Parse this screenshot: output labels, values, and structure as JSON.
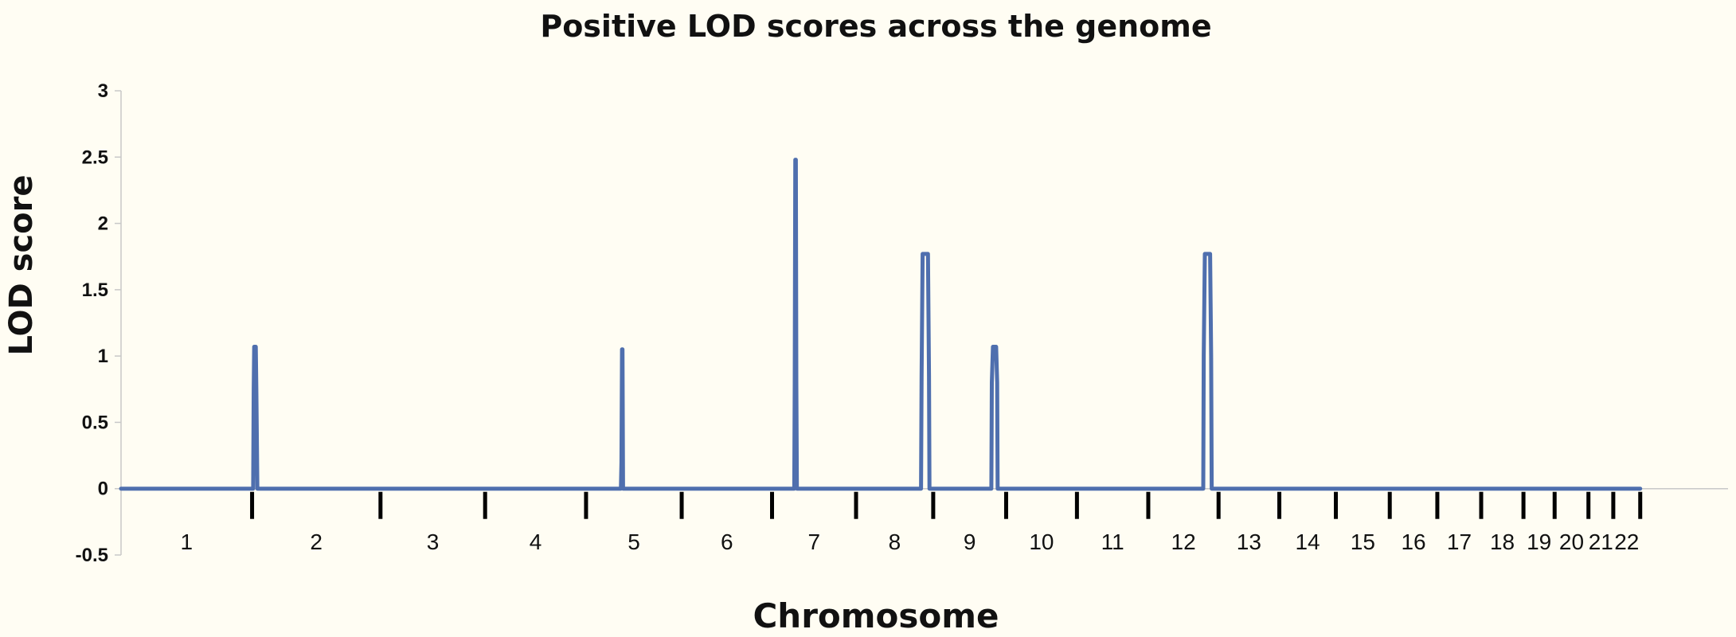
{
  "chart_data": {
    "type": "line",
    "title": "Positive LOD scores across the genome",
    "xlabel": "Chromosome",
    "ylabel": "LOD score",
    "ylim": [
      -0.5,
      3
    ],
    "yticks": [
      {
        "value": 3,
        "label": "3"
      },
      {
        "value": 2.5,
        "label": "2.5"
      },
      {
        "value": 2,
        "label": "2"
      },
      {
        "value": 1.5,
        "label": "1.5"
      },
      {
        "value": 1,
        "label": "1"
      },
      {
        "value": 0.5,
        "label": "0.5"
      },
      {
        "value": 0,
        "label": "0"
      },
      {
        "value": -0.5,
        "label": "-0.5"
      }
    ],
    "xlim": [
      0,
      2898
    ],
    "chromosomes": [
      {
        "label": "1",
        "start": 0,
        "end": 248
      },
      {
        "label": "2",
        "start": 248,
        "end": 491
      },
      {
        "label": "3",
        "start": 491,
        "end": 689
      },
      {
        "label": "4",
        "start": 689,
        "end": 880
      },
      {
        "label": "5",
        "start": 880,
        "end": 1061
      },
      {
        "label": "6",
        "start": 1061,
        "end": 1232
      },
      {
        "label": "7",
        "start": 1232,
        "end": 1391
      },
      {
        "label": "8",
        "start": 1391,
        "end": 1537
      },
      {
        "label": "9",
        "start": 1537,
        "end": 1675
      },
      {
        "label": "10",
        "start": 1675,
        "end": 1809
      },
      {
        "label": "11",
        "start": 1809,
        "end": 1944
      },
      {
        "label": "12",
        "start": 1944,
        "end": 2077
      },
      {
        "label": "13",
        "start": 2077,
        "end": 2192
      },
      {
        "label": "14",
        "start": 2192,
        "end": 2299
      },
      {
        "label": "15",
        "start": 2299,
        "end": 2401
      },
      {
        "label": "16",
        "start": 2401,
        "end": 2491
      },
      {
        "label": "17",
        "start": 2491,
        "end": 2574
      },
      {
        "label": "18",
        "start": 2574,
        "end": 2654
      },
      {
        "label": "19",
        "start": 2654,
        "end": 2713
      },
      {
        "label": "20",
        "start": 2713,
        "end": 2777
      },
      {
        "label": "21",
        "start": 2777,
        "end": 2824
      },
      {
        "label": "22",
        "start": 2824,
        "end": 2875
      }
    ],
    "series": [
      {
        "color": "#4f6fae",
        "points": [
          [
            0,
            0
          ],
          [
            250,
            0
          ],
          [
            251,
            0.75
          ],
          [
            252,
            1.07
          ],
          [
            255,
            1.07
          ],
          [
            256,
            0.75
          ],
          [
            258,
            0
          ],
          [
            946,
            0
          ],
          [
            947,
            0.2
          ],
          [
            948,
            1.05
          ],
          [
            949,
            1.05
          ],
          [
            950,
            0
          ],
          [
            1274,
            0
          ],
          [
            1275,
            0.8
          ],
          [
            1276,
            2.48
          ],
          [
            1277,
            2.48
          ],
          [
            1278,
            0.8
          ],
          [
            1279,
            0
          ],
          [
            1514,
            0
          ],
          [
            1515,
            0.85
          ],
          [
            1517,
            1.77
          ],
          [
            1527,
            1.77
          ],
          [
            1529,
            0.85
          ],
          [
            1530,
            0
          ],
          [
            1647,
            0
          ],
          [
            1648,
            0.8
          ],
          [
            1650,
            1.07
          ],
          [
            1656,
            1.07
          ],
          [
            1658,
            0.8
          ],
          [
            1659,
            0
          ],
          [
            2048,
            0
          ],
          [
            2049,
            1.0
          ],
          [
            2051,
            1.77
          ],
          [
            2061,
            1.77
          ],
          [
            2063,
            1.0
          ],
          [
            2064,
            0
          ],
          [
            2875,
            0
          ]
        ]
      }
    ],
    "grid": false,
    "legend": "none"
  }
}
